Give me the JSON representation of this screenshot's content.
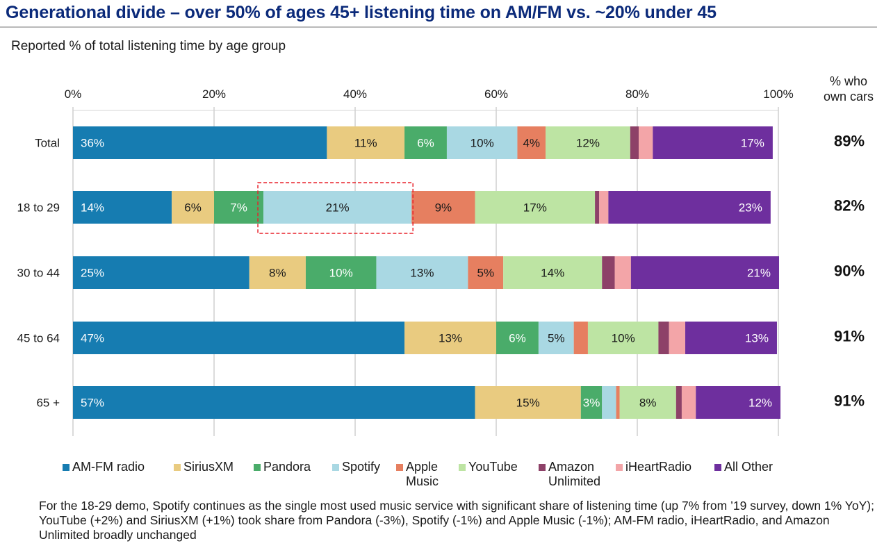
{
  "header": {
    "title": "Generational divide – over 50% of ages 45+ listening time on AM/FM vs. ~20% under 45",
    "subtitle": "Reported % of total listening time by age group"
  },
  "own_cars_header": [
    "% who",
    "own cars"
  ],
  "footnote": "For the 18-29 demo, Spotify continues as the single most used music service with significant share of listening time (up 7% from ’19 survey, down 1% YoY); YouTube (+2%) and SiriusXM (+1%) took share from Pandora (-3%), Spotify (-1%) and Apple Music (-1%); AM-FM radio, iHeartRadio, and Amazon Unlimited broadly unchanged",
  "chart_data": {
    "type": "bar",
    "orientation": "horizontal",
    "stacked": "100%",
    "title": "Reported % of total listening time by age group",
    "xlabel": "",
    "ylabel": "",
    "xlim": [
      0,
      100
    ],
    "x_ticks": [
      "0%",
      "20%",
      "40%",
      "60%",
      "80%",
      "100%"
    ],
    "x_tick_values": [
      0,
      20,
      40,
      60,
      80,
      100
    ],
    "grid": true,
    "legend_position": "bottom",
    "categories": [
      "Total",
      "18 to 29",
      "30 to 44",
      "45 to 64",
      "65 +"
    ],
    "series": [
      {
        "name": "AM-FM radio",
        "color": "#167cb1",
        "label_color": "#ffffff",
        "values": [
          36,
          14,
          25,
          47,
          57
        ],
        "labels": [
          "36%",
          "14%",
          "25%",
          "47%",
          "57%"
        ],
        "label_align": "left"
      },
      {
        "name": "SiriusXM",
        "color": "#e9cb80",
        "label_color": "#1a1a1a",
        "values": [
          11,
          6,
          8,
          13,
          15
        ],
        "labels": [
          "11%",
          "6%",
          "8%",
          "13%",
          "15%"
        ]
      },
      {
        "name": "Pandora",
        "color": "#4aac6a",
        "label_color": "#ffffff",
        "values": [
          6,
          7,
          10,
          6,
          3
        ],
        "labels": [
          "6%",
          "7%",
          "10%",
          "6%",
          "3%"
        ]
      },
      {
        "name": "Spotify",
        "color": "#a9d8e3",
        "label_color": "#1a1a1a",
        "values": [
          10,
          21,
          13,
          5,
          2
        ],
        "labels": [
          "10%",
          "21%",
          "13%",
          "5%",
          ""
        ]
      },
      {
        "name": "Apple Music",
        "color": "#e67f60",
        "label_color": "#1a1a1a",
        "values": [
          4,
          9,
          5,
          2,
          0.5
        ],
        "labels": [
          "4%",
          "9%",
          "5%",
          "",
          ""
        ]
      },
      {
        "name": "YouTube",
        "color": "#bde4a3",
        "label_color": "#1a1a1a",
        "values": [
          12,
          17,
          14,
          10,
          8
        ],
        "labels": [
          "12%",
          "17%",
          "14%",
          "10%",
          "8%"
        ]
      },
      {
        "name": "Amazon Unlimited",
        "color": "#8d4168",
        "label_color": "#ffffff",
        "values": [
          1.2,
          0.6,
          1.8,
          1.5,
          0.8
        ],
        "labels": [
          "",
          "",
          "",
          "",
          ""
        ]
      },
      {
        "name": "iHeartRadio",
        "color": "#f3a5a8",
        "label_color": "#1a1a1a",
        "values": [
          2,
          1.3,
          2.3,
          2.3,
          2
        ],
        "labels": [
          "",
          "",
          "",
          "",
          ""
        ]
      },
      {
        "name": "All Other",
        "color": "#6e2f9e",
        "label_color": "#ffffff",
        "values": [
          17,
          23,
          21,
          13,
          12
        ],
        "labels": [
          "17%",
          "23%",
          "21%",
          "13%",
          "12%"
        ],
        "label_align": "right"
      }
    ],
    "own_cars": [
      "89%",
      "82%",
      "90%",
      "91%",
      "91%"
    ],
    "annotation": {
      "type": "dashed-box",
      "category": "18 to 29",
      "series": "Spotify",
      "color": "#e8222b"
    }
  },
  "legend": [
    {
      "name": "AM-FM radio",
      "lines": [
        "AM-FM radio"
      ]
    },
    {
      "name": "SiriusXM",
      "lines": [
        "SiriusXM"
      ]
    },
    {
      "name": "Pandora",
      "lines": [
        "Pandora"
      ]
    },
    {
      "name": "Spotify",
      "lines": [
        "Spotify"
      ]
    },
    {
      "name": "Apple Music",
      "lines": [
        "Apple",
        "Music"
      ]
    },
    {
      "name": "YouTube",
      "lines": [
        "YouTube"
      ]
    },
    {
      "name": "Amazon Unlimited",
      "lines": [
        "Amazon",
        "Unlimited"
      ]
    },
    {
      "name": "iHeartRadio",
      "lines": [
        "iHeartRadio"
      ]
    },
    {
      "name": "All Other",
      "lines": [
        "All Other"
      ]
    }
  ]
}
